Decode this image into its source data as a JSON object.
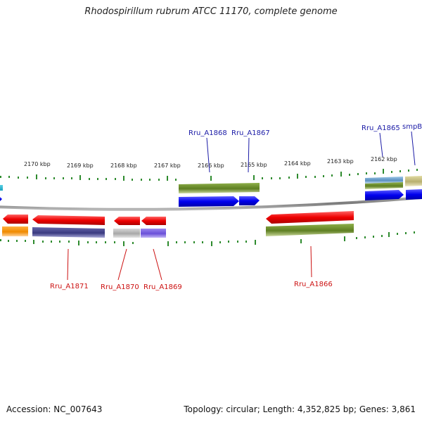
{
  "title": "Rhodospirillum rubrum ATCC 11170, complete genome",
  "footer": {
    "accession": "Accession: NC_007643",
    "stats": "Topology: circular; Length: 4,352,825 bp; Genes: 3,861"
  },
  "colors": {
    "backbone": "#808080",
    "tick": "#2e8b2e",
    "forward_label": "#1a1aa6",
    "reverse_label": "#cc1111"
  },
  "ruler_ticks": [
    "2170 kbp",
    "2169 kbp",
    "2168 kbp",
    "2167 kbp",
    "2166 kbp",
    "2165 kbp",
    "2164 kbp",
    "2163 kbp",
    "2162 kbp"
  ],
  "forward_labels": [
    "Rru_A1868",
    "Rru_A1867",
    "Rru_A1865",
    "smpB"
  ],
  "reverse_labels": [
    "Rru_A1871",
    "Rru_A1870",
    "Rru_A1869",
    "Rru_A1866"
  ]
}
